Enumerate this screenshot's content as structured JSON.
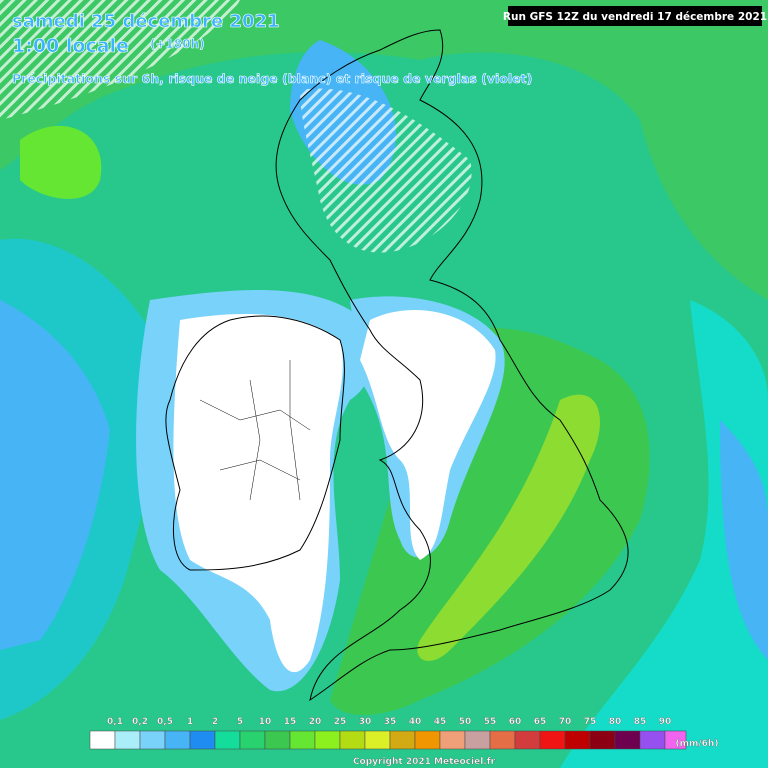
{
  "header": {
    "date": "samedi 25 décembre 2021",
    "time": "1:00 locale",
    "lead": "(+180h)",
    "subtitle": "Précipitations sur 6h, risque de neige (blanc) et risque de verglas (violet)"
  },
  "run": "Run GFS 12Z du vendredi 17 décembre 2021",
  "legend": {
    "items": [
      {
        "label": "0,1",
        "color": "#ffffff"
      },
      {
        "label": "0,2",
        "color": "#aaeefa"
      },
      {
        "label": "0,5",
        "color": "#78d2fa"
      },
      {
        "label": "1",
        "color": "#46b4f5"
      },
      {
        "label": "2",
        "color": "#1e8cf0"
      },
      {
        "label": "5",
        "color": "#14dc9b"
      },
      {
        "label": "10",
        "color": "#28d26e"
      },
      {
        "label": "15",
        "color": "#3cc850"
      },
      {
        "label": "20",
        "color": "#64e632"
      },
      {
        "label": "25",
        "color": "#8cf01e"
      },
      {
        "label": "30",
        "color": "#b4dc14"
      },
      {
        "label": "35",
        "color": "#dcf028"
      },
      {
        "label": "40",
        "color": "#d2aa14"
      },
      {
        "label": "45",
        "color": "#f09600"
      },
      {
        "label": "50",
        "color": "#f0a078"
      },
      {
        "label": "55",
        "color": "#c8a0a0"
      },
      {
        "label": "60",
        "color": "#e66e46"
      },
      {
        "label": "65",
        "color": "#d23c3c"
      },
      {
        "label": "70",
        "color": "#f01414"
      },
      {
        "label": "75",
        "color": "#be0000"
      },
      {
        "label": "80",
        "color": "#8c0014"
      },
      {
        "label": "85",
        "color": "#6e0050"
      },
      {
        "label": "90",
        "color": "#9650f0"
      }
    ],
    "last_color": "#f064f0",
    "unit": "(mm/6h)"
  },
  "copyright": "Copyright 2021 Meteociel.fr"
}
